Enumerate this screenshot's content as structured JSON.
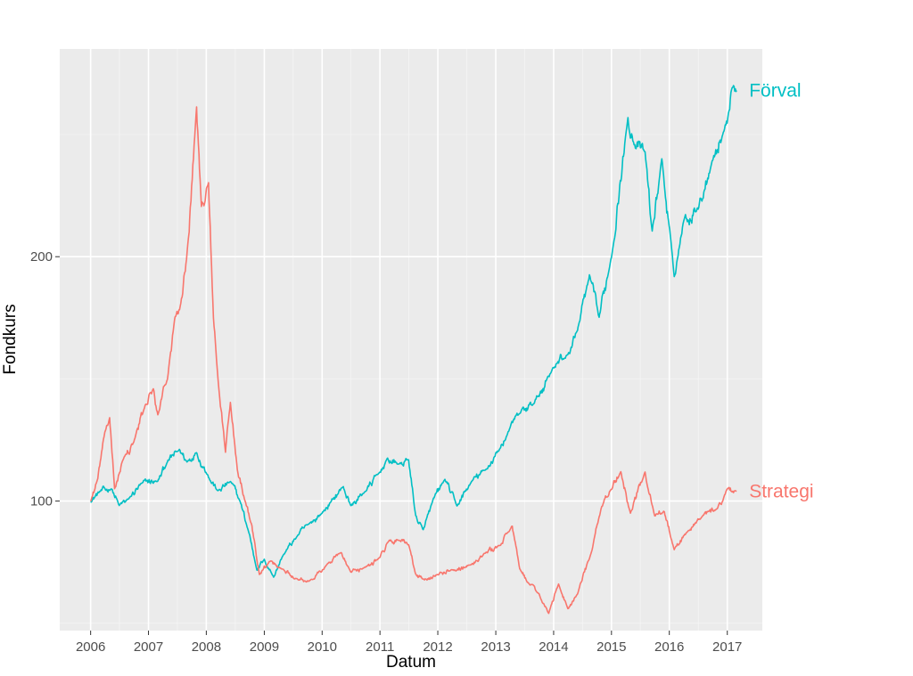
{
  "chart_data": {
    "type": "line",
    "title": "",
    "xlabel": "Datum",
    "ylabel": "Fondkurs",
    "x_ticks": [
      "2006",
      "2007",
      "2008",
      "2009",
      "2010",
      "2011",
      "2012",
      "2013",
      "2014",
      "2015",
      "2016",
      "2017"
    ],
    "y_ticks": [
      "100",
      "200"
    ],
    "xlim": [
      "2005-06-20",
      "2017-08-10"
    ],
    "ylim": [
      47,
      285
    ],
    "grid": true,
    "legend": "direct labels at line ends",
    "background": "#ebebeb",
    "series": [
      {
        "name": "Förval",
        "color": "#00bfc4",
        "points": [
          [
            "2006-01-01",
            100
          ],
          [
            "2006-03-01",
            104
          ],
          [
            "2006-05-15",
            105
          ],
          [
            "2006-07-01",
            98
          ],
          [
            "2006-09-01",
            101
          ],
          [
            "2006-12-01",
            108
          ],
          [
            "2007-03-01",
            108
          ],
          [
            "2007-05-01",
            116
          ],
          [
            "2007-07-15",
            121
          ],
          [
            "2007-09-01",
            116
          ],
          [
            "2007-11-01",
            120
          ],
          [
            "2008-01-15",
            110
          ],
          [
            "2008-03-15",
            104
          ],
          [
            "2008-06-01",
            108
          ],
          [
            "2008-08-01",
            100
          ],
          [
            "2008-10-01",
            86
          ],
          [
            "2008-11-15",
            72
          ],
          [
            "2009-01-01",
            76
          ],
          [
            "2009-03-01",
            69
          ],
          [
            "2009-05-01",
            78
          ],
          [
            "2009-08-01",
            86
          ],
          [
            "2009-10-15",
            91
          ],
          [
            "2010-01-01",
            95
          ],
          [
            "2010-03-01",
            100
          ],
          [
            "2010-05-15",
            106
          ],
          [
            "2010-07-01",
            98
          ],
          [
            "2010-10-01",
            104
          ],
          [
            "2011-01-01",
            112
          ],
          [
            "2011-02-15",
            117
          ],
          [
            "2011-05-01",
            115
          ],
          [
            "2011-07-01",
            117
          ],
          [
            "2011-08-15",
            94
          ],
          [
            "2011-10-01",
            88
          ],
          [
            "2011-12-01",
            100
          ],
          [
            "2012-02-15",
            109
          ],
          [
            "2012-05-01",
            98
          ],
          [
            "2012-08-01",
            108
          ],
          [
            "2012-11-01",
            113
          ],
          [
            "2013-02-01",
            122
          ],
          [
            "2013-04-01",
            130
          ],
          [
            "2013-06-01",
            136
          ],
          [
            "2013-09-01",
            140
          ],
          [
            "2014-01-01",
            155
          ],
          [
            "2014-04-01",
            160
          ],
          [
            "2014-06-01",
            170
          ],
          [
            "2014-08-15",
            192
          ],
          [
            "2014-10-15",
            175
          ],
          [
            "2015-01-01",
            200
          ],
          [
            "2015-04-15",
            257
          ],
          [
            "2015-06-01",
            245
          ],
          [
            "2015-08-01",
            243
          ],
          [
            "2015-09-15",
            210
          ],
          [
            "2015-11-15",
            240
          ],
          [
            "2016-02-01",
            192
          ],
          [
            "2016-04-01",
            215
          ],
          [
            "2016-07-01",
            220
          ],
          [
            "2016-10-01",
            240
          ],
          [
            "2016-12-15",
            252
          ],
          [
            "2017-02-01",
            270
          ],
          [
            "2017-03-01",
            268
          ]
        ]
      },
      {
        "name": "Strategi",
        "color": "#f8766d",
        "points": [
          [
            "2006-01-01",
            100
          ],
          [
            "2006-02-15",
            109
          ],
          [
            "2006-04-01",
            128
          ],
          [
            "2006-05-01",
            134
          ],
          [
            "2006-06-01",
            105
          ],
          [
            "2006-08-01",
            118
          ],
          [
            "2006-10-01",
            124
          ],
          [
            "2006-12-15",
            140
          ],
          [
            "2007-02-01",
            146
          ],
          [
            "2007-03-01",
            135
          ],
          [
            "2007-05-01",
            150
          ],
          [
            "2007-06-15",
            174
          ],
          [
            "2007-08-01",
            184
          ],
          [
            "2007-09-15",
            210
          ],
          [
            "2007-11-01",
            262
          ],
          [
            "2007-12-01",
            220
          ],
          [
            "2008-01-15",
            230
          ],
          [
            "2008-02-15",
            175
          ],
          [
            "2008-03-15",
            150
          ],
          [
            "2008-05-01",
            120
          ],
          [
            "2008-06-01",
            140
          ],
          [
            "2008-07-15",
            113
          ],
          [
            "2008-09-01",
            100
          ],
          [
            "2008-10-15",
            90
          ],
          [
            "2008-12-01",
            70
          ],
          [
            "2009-02-01",
            75
          ],
          [
            "2009-05-01",
            72
          ],
          [
            "2009-08-01",
            68
          ],
          [
            "2009-11-01",
            68
          ],
          [
            "2010-02-01",
            74
          ],
          [
            "2010-05-01",
            79
          ],
          [
            "2010-07-01",
            71
          ],
          [
            "2010-10-01",
            73
          ],
          [
            "2011-01-01",
            77
          ],
          [
            "2011-03-01",
            84
          ],
          [
            "2011-05-01",
            84
          ],
          [
            "2011-07-01",
            82
          ],
          [
            "2011-08-15",
            70
          ],
          [
            "2011-10-01",
            68
          ],
          [
            "2012-01-01",
            70
          ],
          [
            "2012-04-01",
            72
          ],
          [
            "2012-08-01",
            74
          ],
          [
            "2012-11-01",
            79
          ],
          [
            "2013-02-01",
            82
          ],
          [
            "2013-04-15",
            90
          ],
          [
            "2013-06-01",
            72
          ],
          [
            "2013-08-01",
            66
          ],
          [
            "2013-10-01",
            62
          ],
          [
            "2013-12-01",
            54
          ],
          [
            "2014-02-01",
            66
          ],
          [
            "2014-04-01",
            56
          ],
          [
            "2014-06-01",
            62
          ],
          [
            "2014-09-01",
            80
          ],
          [
            "2014-11-01",
            98
          ],
          [
            "2015-01-01",
            105
          ],
          [
            "2015-03-01",
            112
          ],
          [
            "2015-05-01",
            95
          ],
          [
            "2015-08-01",
            112
          ],
          [
            "2015-10-01",
            94
          ],
          [
            "2015-12-01",
            96
          ],
          [
            "2016-02-01",
            80
          ],
          [
            "2016-05-01",
            88
          ],
          [
            "2016-08-01",
            94
          ],
          [
            "2016-11-01",
            97
          ],
          [
            "2017-01-01",
            105
          ],
          [
            "2017-03-01",
            104
          ]
        ]
      }
    ]
  }
}
